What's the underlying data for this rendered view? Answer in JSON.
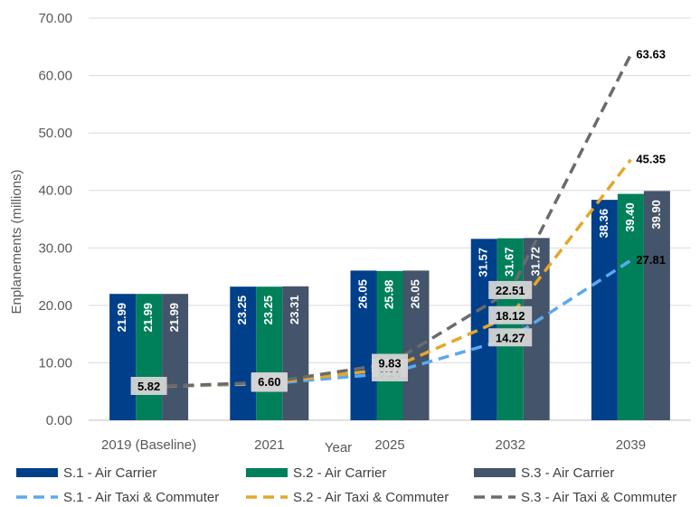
{
  "chart_data": {
    "type": "bar",
    "title": "",
    "xlabel": "Year",
    "ylabel": "Enplanements (millions)",
    "ylim": [
      0,
      70
    ],
    "yticks": [
      "0.00",
      "10.00",
      "20.00",
      "30.00",
      "40.00",
      "50.00",
      "60.00",
      "70.00"
    ],
    "categories": [
      "2019 (Baseline)",
      "2021",
      "2025",
      "2032",
      "2039"
    ],
    "grid": true,
    "legend_position": "bottom",
    "series": [
      {
        "name": "S.1 - Air Carrier",
        "kind": "bar",
        "color": "#003f8a",
        "values": [
          21.99,
          23.25,
          26.05,
          31.57,
          38.36
        ],
        "labels": [
          "21.99",
          "23.25",
          "26.05",
          "31.57",
          "38.36"
        ]
      },
      {
        "name": "S.2 - Air Carrier",
        "kind": "bar",
        "color": "#00805a",
        "values": [
          21.99,
          23.25,
          25.98,
          31.67,
          39.4
        ],
        "labels": [
          "21.99",
          "23.25",
          "25.98",
          "31.67",
          "39.40"
        ]
      },
      {
        "name": "S.3 - Air Carrier",
        "kind": "bar",
        "color": "#44546a",
        "values": [
          21.99,
          23.31,
          26.05,
          31.72,
          39.9
        ],
        "labels": [
          "21.99",
          "23.31",
          "26.05",
          "31.72",
          "39.90"
        ]
      },
      {
        "name": "S.1 - Air Taxi & Commuter",
        "kind": "line",
        "color": "#5aa9f0",
        "values": [
          5.82,
          6.36,
          8.18,
          14.27,
          27.81
        ],
        "labels": [
          "5.82",
          "6.36",
          "8.18",
          "14.27",
          "27.81"
        ]
      },
      {
        "name": "S.2 - Air Taxi & Commuter",
        "kind": "line",
        "color": "#e3a72b",
        "values": [
          5.82,
          6.48,
          8.97,
          18.12,
          45.35
        ],
        "labels": [
          "",
          "6.48",
          "8.97",
          "18.12",
          "45.35"
        ]
      },
      {
        "name": "S.3 - Air Taxi & Commuter",
        "kind": "line",
        "color": "#6b6b6b",
        "values": [
          5.82,
          6.6,
          9.83,
          22.51,
          63.63
        ],
        "labels": [
          "",
          "6.60",
          "9.83",
          "22.51",
          "63.63"
        ]
      }
    ]
  }
}
